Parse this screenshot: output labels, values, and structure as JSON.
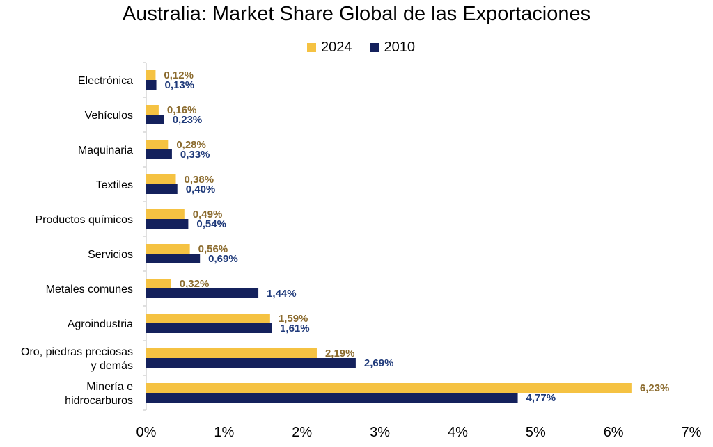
{
  "chart_data": {
    "type": "bar",
    "orientation": "horizontal",
    "title": "Australia: Market Share Global de las Exportaciones",
    "categories": [
      [
        "Electrónica"
      ],
      [
        "Vehículos"
      ],
      [
        "Maquinaria"
      ],
      [
        "Textiles"
      ],
      [
        "Productos químicos"
      ],
      [
        "Servicios"
      ],
      [
        "Metales comunes"
      ],
      [
        "Agroindustria"
      ],
      [
        "Oro, piedras preciosas",
        "y demás"
      ],
      [
        "Minería e",
        "hidrocarburos"
      ]
    ],
    "series": [
      {
        "name": "2024",
        "color": "#F5C242",
        "label_color": "#8B6B2E",
        "values": [
          0.12,
          0.16,
          0.28,
          0.38,
          0.49,
          0.56,
          0.32,
          1.59,
          2.19,
          6.23
        ],
        "labels": [
          "0,12%",
          "0,16%",
          "0,28%",
          "0,38%",
          "0,49%",
          "0,56%",
          "0,32%",
          "1,59%",
          "2,19%",
          "6,23%"
        ]
      },
      {
        "name": "2010",
        "color": "#14215C",
        "label_color": "#1F3A7A",
        "values": [
          0.13,
          0.23,
          0.33,
          0.4,
          0.54,
          0.69,
          1.44,
          1.61,
          2.69,
          4.77
        ],
        "labels": [
          "0,13%",
          "0,23%",
          "0,33%",
          "0,40%",
          "0,54%",
          "0,69%",
          "1,44%",
          "1,61%",
          "2,69%",
          "4,77%"
        ]
      }
    ],
    "xlim": [
      0,
      7
    ],
    "x_ticks": [
      0,
      1,
      2,
      3,
      4,
      5,
      6,
      7
    ],
    "x_tick_labels": [
      "0%",
      "1%",
      "2%",
      "3%",
      "4%",
      "5%",
      "6%",
      "7%"
    ],
    "legend_position": "top-center",
    "grid": false
  }
}
